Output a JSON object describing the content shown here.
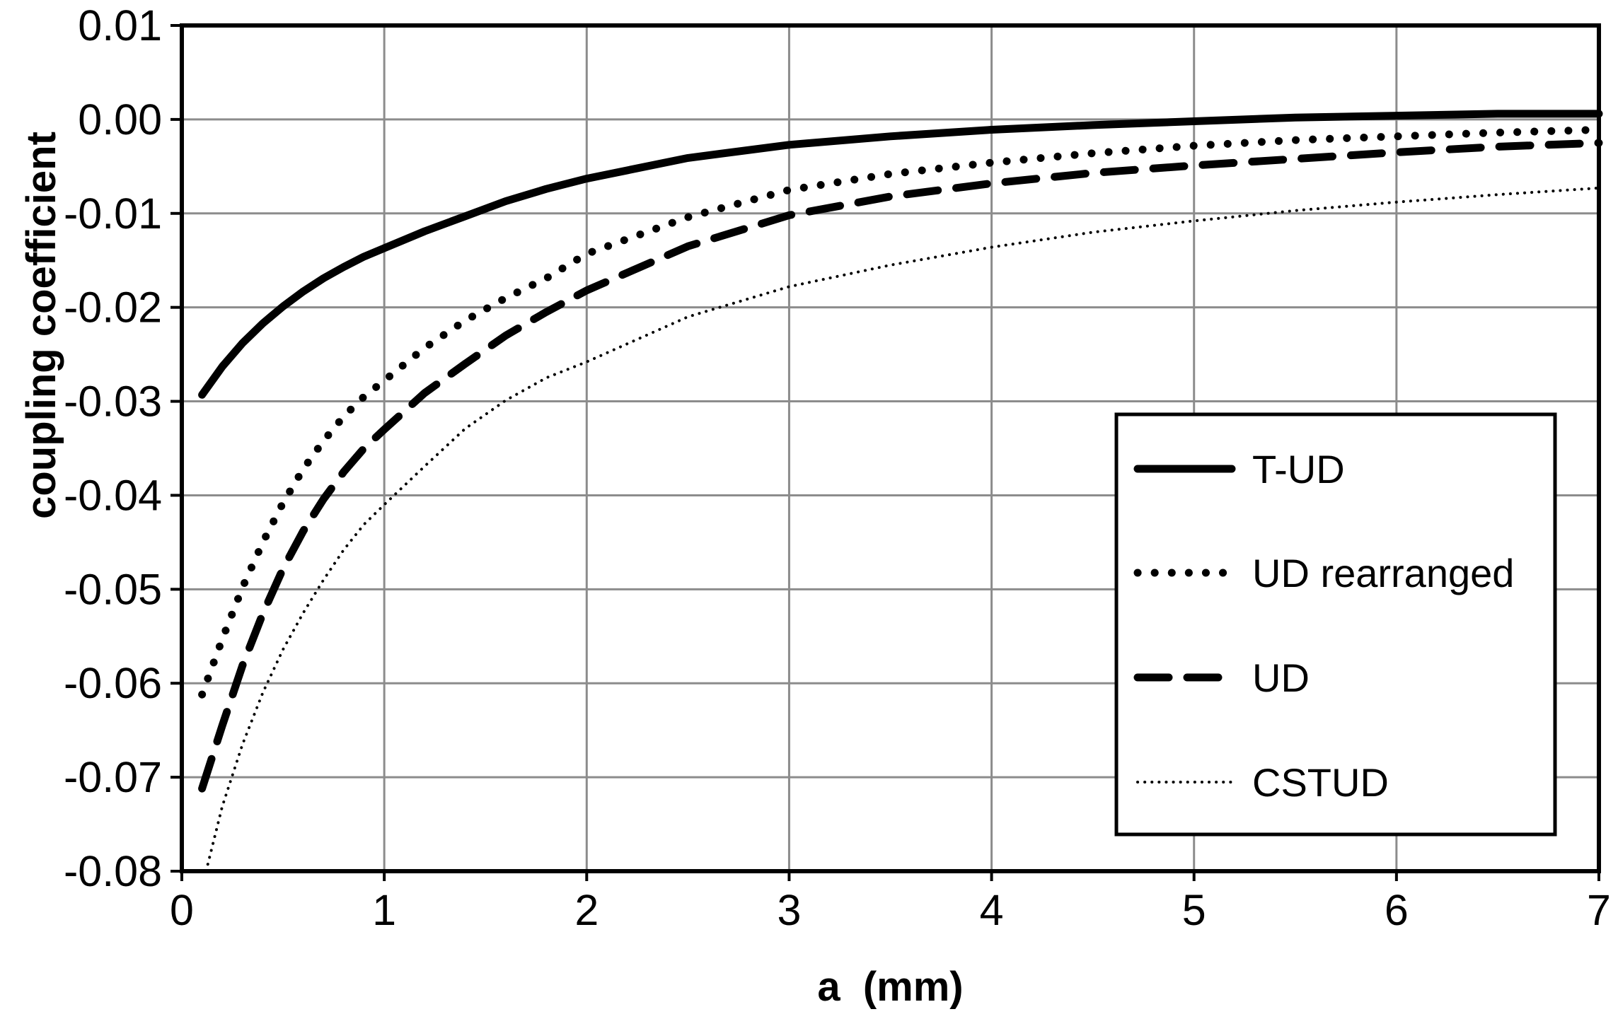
{
  "chart_data": {
    "type": "line",
    "title": "",
    "xlabel": "a  (mm)",
    "ylabel": "coupling coefficient",
    "xlim": [
      0,
      7
    ],
    "ylim": [
      -0.08,
      0.01
    ],
    "x_ticks": [
      "0",
      "1",
      "2",
      "3",
      "4",
      "5",
      "6",
      "7"
    ],
    "y_ticks": [
      "0.01",
      "0.00",
      "-0.01",
      "-0.02",
      "-0.03",
      "-0.04",
      "-0.05",
      "-0.06",
      "-0.07",
      "-0.08"
    ],
    "grid": true,
    "legend_position": "bottom-right",
    "series": [
      {
        "name": "T-UD",
        "line_style": "solid-thick",
        "color": "#000000",
        "x": [
          0.1,
          0.2,
          0.3,
          0.4,
          0.5,
          0.6,
          0.7,
          0.8,
          0.9,
          1.0,
          1.2,
          1.4,
          1.6,
          1.8,
          2.0,
          2.5,
          3.0,
          3.5,
          4.0,
          4.5,
          5.0,
          5.5,
          6.0,
          6.5,
          7.0
        ],
        "y": [
          -0.0293,
          -0.0263,
          -0.0238,
          -0.0217,
          -0.0199,
          -0.0183,
          -0.0169,
          -0.0157,
          -0.0146,
          -0.0137,
          -0.0119,
          -0.0103,
          -0.0087,
          -0.0074,
          -0.0063,
          -0.0041,
          -0.0027,
          -0.0018,
          -0.0011,
          -0.0006,
          -0.0002,
          0.0002,
          0.0004,
          0.0006,
          0.0006
        ]
      },
      {
        "name": "UD rearranged",
        "line_style": "dotted-thick",
        "color": "#000000",
        "x": [
          0.1,
          0.2,
          0.3,
          0.4,
          0.5,
          0.6,
          0.7,
          0.8,
          0.9,
          1.0,
          1.2,
          1.4,
          1.6,
          1.8,
          2.0,
          2.5,
          3.0,
          3.5,
          4.0,
          4.5,
          5.0,
          5.5,
          6.0,
          6.5,
          7.0
        ],
        "y": [
          -0.0612,
          -0.0553,
          -0.0498,
          -0.045,
          -0.0408,
          -0.0372,
          -0.0342,
          -0.0316,
          -0.0295,
          -0.0278,
          -0.0243,
          -0.0214,
          -0.019,
          -0.0169,
          -0.0143,
          -0.0104,
          -0.0075,
          -0.0058,
          -0.0046,
          -0.0036,
          -0.0028,
          -0.0022,
          -0.0018,
          -0.0014,
          -0.0011
        ]
      },
      {
        "name": "UD",
        "line_style": "dashed-thick",
        "color": "#000000",
        "x": [
          0.1,
          0.2,
          0.3,
          0.4,
          0.5,
          0.6,
          0.7,
          0.8,
          0.9,
          1.0,
          1.2,
          1.4,
          1.6,
          1.8,
          2.0,
          2.5,
          3.0,
          3.5,
          4.0,
          4.5,
          5.0,
          5.5,
          6.0,
          6.5,
          7.0
        ],
        "y": [
          -0.0712,
          -0.0645,
          -0.0581,
          -0.0526,
          -0.0478,
          -0.0438,
          -0.0404,
          -0.0375,
          -0.035,
          -0.033,
          -0.0291,
          -0.026,
          -0.023,
          -0.0205,
          -0.0182,
          -0.0135,
          -0.0102,
          -0.0082,
          -0.0068,
          -0.0057,
          -0.0049,
          -0.0042,
          -0.0035,
          -0.0029,
          -0.0025
        ]
      },
      {
        "name": "CSTUD",
        "line_style": "dotted-thin",
        "color": "#000000",
        "x": [
          0.12,
          0.2,
          0.3,
          0.4,
          0.5,
          0.6,
          0.7,
          0.8,
          0.9,
          1.0,
          1.2,
          1.4,
          1.6,
          1.8,
          2.0,
          2.5,
          3.0,
          3.5,
          4.0,
          4.5,
          5.0,
          5.5,
          6.0,
          6.5,
          7.0
        ],
        "y": [
          -0.08,
          -0.0731,
          -0.0665,
          -0.061,
          -0.0564,
          -0.0525,
          -0.049,
          -0.0458,
          -0.0431,
          -0.041,
          -0.0369,
          -0.0329,
          -0.0299,
          -0.0275,
          -0.0258,
          -0.021,
          -0.0178,
          -0.0155,
          -0.0136,
          -0.012,
          -0.0108,
          -0.0097,
          -0.0088,
          -0.008,
          -0.0073
        ]
      }
    ]
  }
}
